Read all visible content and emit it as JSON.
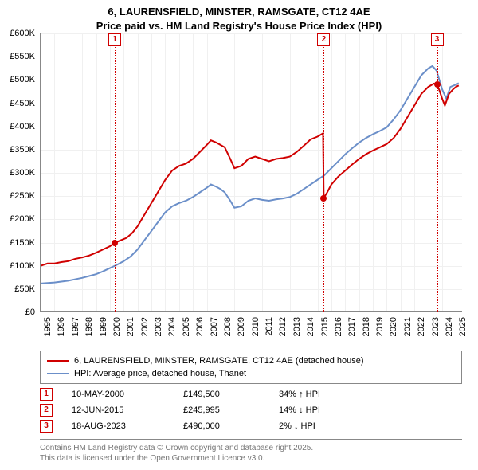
{
  "title": {
    "line1": "6, LAURENSFIELD, MINSTER, RAMSGATE, CT12 4AE",
    "line2": "Price paid vs. HM Land Registry's House Price Index (HPI)"
  },
  "chart": {
    "type": "line",
    "background_color": "#ffffff",
    "grid_color": "#f0f0f0",
    "axis_color": "#888888",
    "y": {
      "min": 0,
      "max": 600000,
      "tick_step": 50000,
      "labels": [
        "£0",
        "£50K",
        "£100K",
        "£150K",
        "£200K",
        "£250K",
        "£300K",
        "£350K",
        "£400K",
        "£450K",
        "£500K",
        "£550K",
        "£600K"
      ]
    },
    "x": {
      "min": 1995,
      "max": 2025.5,
      "tick_step": 1,
      "labels": [
        "1995",
        "1996",
        "1997",
        "1998",
        "1999",
        "2000",
        "2001",
        "2002",
        "2003",
        "2004",
        "2005",
        "2006",
        "2007",
        "2008",
        "2009",
        "2010",
        "2011",
        "2012",
        "2013",
        "2014",
        "2015",
        "2016",
        "2017",
        "2018",
        "2019",
        "2020",
        "2021",
        "2022",
        "2023",
        "2024",
        "2025"
      ]
    },
    "series": {
      "price_paid": {
        "label": "6, LAURENSFIELD, MINSTER, RAMSGATE, CT12 4AE (detached house)",
        "color": "#d00000",
        "line_width": 2,
        "points": [
          [
            1995.0,
            100000
          ],
          [
            1995.5,
            105000
          ],
          [
            1996.0,
            105000
          ],
          [
            1996.5,
            108000
          ],
          [
            1997.0,
            110000
          ],
          [
            1997.5,
            115000
          ],
          [
            1998.0,
            118000
          ],
          [
            1998.5,
            122000
          ],
          [
            1999.0,
            128000
          ],
          [
            1999.5,
            135000
          ],
          [
            2000.0,
            142000
          ],
          [
            2000.36,
            149500
          ],
          [
            2000.8,
            155000
          ],
          [
            2001.2,
            160000
          ],
          [
            2001.6,
            170000
          ],
          [
            2002.0,
            185000
          ],
          [
            2002.5,
            210000
          ],
          [
            2003.0,
            235000
          ],
          [
            2003.5,
            260000
          ],
          [
            2004.0,
            285000
          ],
          [
            2004.5,
            305000
          ],
          [
            2005.0,
            315000
          ],
          [
            2005.5,
            320000
          ],
          [
            2006.0,
            330000
          ],
          [
            2006.5,
            345000
          ],
          [
            2007.0,
            360000
          ],
          [
            2007.3,
            370000
          ],
          [
            2007.7,
            365000
          ],
          [
            2008.0,
            360000
          ],
          [
            2008.3,
            355000
          ],
          [
            2008.7,
            330000
          ],
          [
            2009.0,
            310000
          ],
          [
            2009.5,
            315000
          ],
          [
            2010.0,
            330000
          ],
          [
            2010.5,
            335000
          ],
          [
            2011.0,
            330000
          ],
          [
            2011.5,
            325000
          ],
          [
            2012.0,
            330000
          ],
          [
            2012.5,
            332000
          ],
          [
            2013.0,
            335000
          ],
          [
            2013.5,
            345000
          ],
          [
            2014.0,
            358000
          ],
          [
            2014.5,
            372000
          ],
          [
            2015.0,
            378000
          ],
          [
            2015.4,
            385000
          ],
          [
            2015.45,
            245995
          ],
          [
            2015.7,
            258000
          ],
          [
            2016.0,
            275000
          ],
          [
            2016.5,
            292000
          ],
          [
            2017.0,
            305000
          ],
          [
            2017.5,
            318000
          ],
          [
            2018.0,
            330000
          ],
          [
            2018.5,
            340000
          ],
          [
            2019.0,
            348000
          ],
          [
            2019.5,
            355000
          ],
          [
            2020.0,
            362000
          ],
          [
            2020.5,
            375000
          ],
          [
            2021.0,
            395000
          ],
          [
            2021.5,
            420000
          ],
          [
            2022.0,
            445000
          ],
          [
            2022.5,
            470000
          ],
          [
            2023.0,
            485000
          ],
          [
            2023.4,
            492000
          ],
          [
            2023.63,
            490000
          ],
          [
            2023.8,
            478000
          ],
          [
            2024.0,
            460000
          ],
          [
            2024.2,
            445000
          ],
          [
            2024.5,
            470000
          ],
          [
            2024.8,
            480000
          ],
          [
            2025.0,
            485000
          ],
          [
            2025.2,
            488000
          ]
        ]
      },
      "hpi": {
        "label": "HPI: Average price, detached house, Thanet",
        "color": "#6b8fc9",
        "line_width": 2,
        "points": [
          [
            1995.0,
            62000
          ],
          [
            1995.5,
            63000
          ],
          [
            1996.0,
            64000
          ],
          [
            1996.5,
            66000
          ],
          [
            1997.0,
            68000
          ],
          [
            1997.5,
            71000
          ],
          [
            1998.0,
            74000
          ],
          [
            1998.5,
            78000
          ],
          [
            1999.0,
            82000
          ],
          [
            1999.5,
            88000
          ],
          [
            2000.0,
            95000
          ],
          [
            2000.5,
            102000
          ],
          [
            2001.0,
            110000
          ],
          [
            2001.5,
            120000
          ],
          [
            2002.0,
            135000
          ],
          [
            2002.5,
            155000
          ],
          [
            2003.0,
            175000
          ],
          [
            2003.5,
            195000
          ],
          [
            2004.0,
            215000
          ],
          [
            2004.5,
            228000
          ],
          [
            2005.0,
            235000
          ],
          [
            2005.5,
            240000
          ],
          [
            2006.0,
            248000
          ],
          [
            2006.5,
            258000
          ],
          [
            2007.0,
            268000
          ],
          [
            2007.3,
            275000
          ],
          [
            2007.7,
            270000
          ],
          [
            2008.0,
            265000
          ],
          [
            2008.3,
            258000
          ],
          [
            2008.7,
            240000
          ],
          [
            2009.0,
            225000
          ],
          [
            2009.5,
            228000
          ],
          [
            2010.0,
            240000
          ],
          [
            2010.5,
            245000
          ],
          [
            2011.0,
            242000
          ],
          [
            2011.5,
            240000
          ],
          [
            2012.0,
            243000
          ],
          [
            2012.5,
            245000
          ],
          [
            2013.0,
            248000
          ],
          [
            2013.5,
            255000
          ],
          [
            2014.0,
            265000
          ],
          [
            2014.5,
            275000
          ],
          [
            2015.0,
            285000
          ],
          [
            2015.5,
            295000
          ],
          [
            2016.0,
            310000
          ],
          [
            2016.5,
            325000
          ],
          [
            2017.0,
            340000
          ],
          [
            2017.5,
            353000
          ],
          [
            2018.0,
            365000
          ],
          [
            2018.5,
            375000
          ],
          [
            2019.0,
            383000
          ],
          [
            2019.5,
            390000
          ],
          [
            2020.0,
            398000
          ],
          [
            2020.5,
            415000
          ],
          [
            2021.0,
            435000
          ],
          [
            2021.5,
            460000
          ],
          [
            2022.0,
            485000
          ],
          [
            2022.5,
            510000
          ],
          [
            2023.0,
            525000
          ],
          [
            2023.3,
            530000
          ],
          [
            2023.6,
            520000
          ],
          [
            2024.0,
            480000
          ],
          [
            2024.3,
            460000
          ],
          [
            2024.6,
            485000
          ],
          [
            2025.0,
            490000
          ],
          [
            2025.2,
            493000
          ]
        ]
      }
    },
    "sale_markers": [
      {
        "tag": "1",
        "year": 2000.36,
        "price": 149500,
        "tag_y": 20
      },
      {
        "tag": "2",
        "year": 2015.45,
        "price": 245995,
        "tag_y": 20
      },
      {
        "tag": "3",
        "year": 2023.63,
        "price": 490000,
        "tag_y": 20
      }
    ],
    "marker_line_color": "#d00000",
    "marker_line_style": "dotted"
  },
  "legend": {
    "items": [
      {
        "key": "price_paid"
      },
      {
        "key": "hpi"
      }
    ]
  },
  "events": [
    {
      "tag": "1",
      "date": "10-MAY-2000",
      "price": "£149,500",
      "delta": "34% ↑ HPI"
    },
    {
      "tag": "2",
      "date": "12-JUN-2015",
      "price": "£245,995",
      "delta": "14% ↓ HPI"
    },
    {
      "tag": "3",
      "date": "18-AUG-2023",
      "price": "£490,000",
      "delta": "2% ↓ HPI"
    }
  ],
  "attribution": {
    "line1": "Contains HM Land Registry data © Crown copyright and database right 2025.",
    "line2": "This data is licensed under the Open Government Licence v3.0."
  }
}
